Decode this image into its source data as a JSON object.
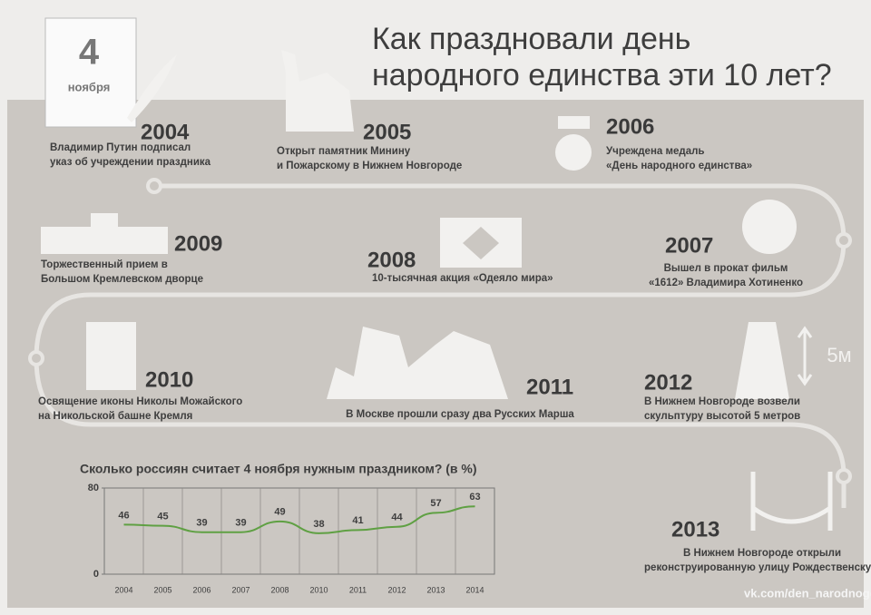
{
  "title": [
    "Как праздновали день",
    "народного единства эти 10 лет?"
  ],
  "badge": {
    "day": "4",
    "month": "ноября"
  },
  "events": [
    {
      "year": "2004",
      "text": [
        "Владимир Путин подписал",
        "указ об учреждении праздника"
      ]
    },
    {
      "year": "2005",
      "text": [
        "Открыт памятник Минину",
        "и Пожарскому в Нижнем Новгороде"
      ]
    },
    {
      "year": "2006",
      "text": [
        "Учреждена медаль",
        "«День народного единства»"
      ]
    },
    {
      "year": "2009",
      "text": [
        "Торжественный прием в",
        "Большом Кремлевском дворце"
      ]
    },
    {
      "year": "2008",
      "text": [
        "10-тысячная акция «Одеяло мира»"
      ]
    },
    {
      "year": "2007",
      "text": [
        "Вышел в прокат фильм",
        "«1612» Владимира Хотиненко"
      ]
    },
    {
      "year": "2010",
      "text": [
        "Освящение иконы Николы Можайского",
        "на Никольской башне Кремля"
      ]
    },
    {
      "year": "2011",
      "text": [
        "В Москве прошли сразу два Русских Марша"
      ]
    },
    {
      "year": "2012",
      "text": [
        "В Нижнем Новгороде возвели",
        "скульптуру высотой 5 метров"
      ]
    },
    {
      "year": "2013",
      "text": [
        "В Нижнем Новгороде открыли",
        "реконструированную улицу Рождественскую"
      ]
    }
  ],
  "sculpture_height": "5м",
  "chart": {
    "type": "line",
    "title": "Сколько россиян считает 4 ноября нужным праздником? (в %)",
    "categories": [
      "2004",
      "2005",
      "2006",
      "2007",
      "2008",
      "2010",
      "2011",
      "2012",
      "2013",
      "2014"
    ],
    "values": [
      46,
      45,
      39,
      39,
      49,
      38,
      41,
      44,
      57,
      63
    ],
    "color": "#5fa043",
    "ylim": [
      0,
      80
    ],
    "yticks": [
      0,
      80
    ],
    "grid": true
  },
  "footer": "vk.com/den_narodnogoedinstva"
}
